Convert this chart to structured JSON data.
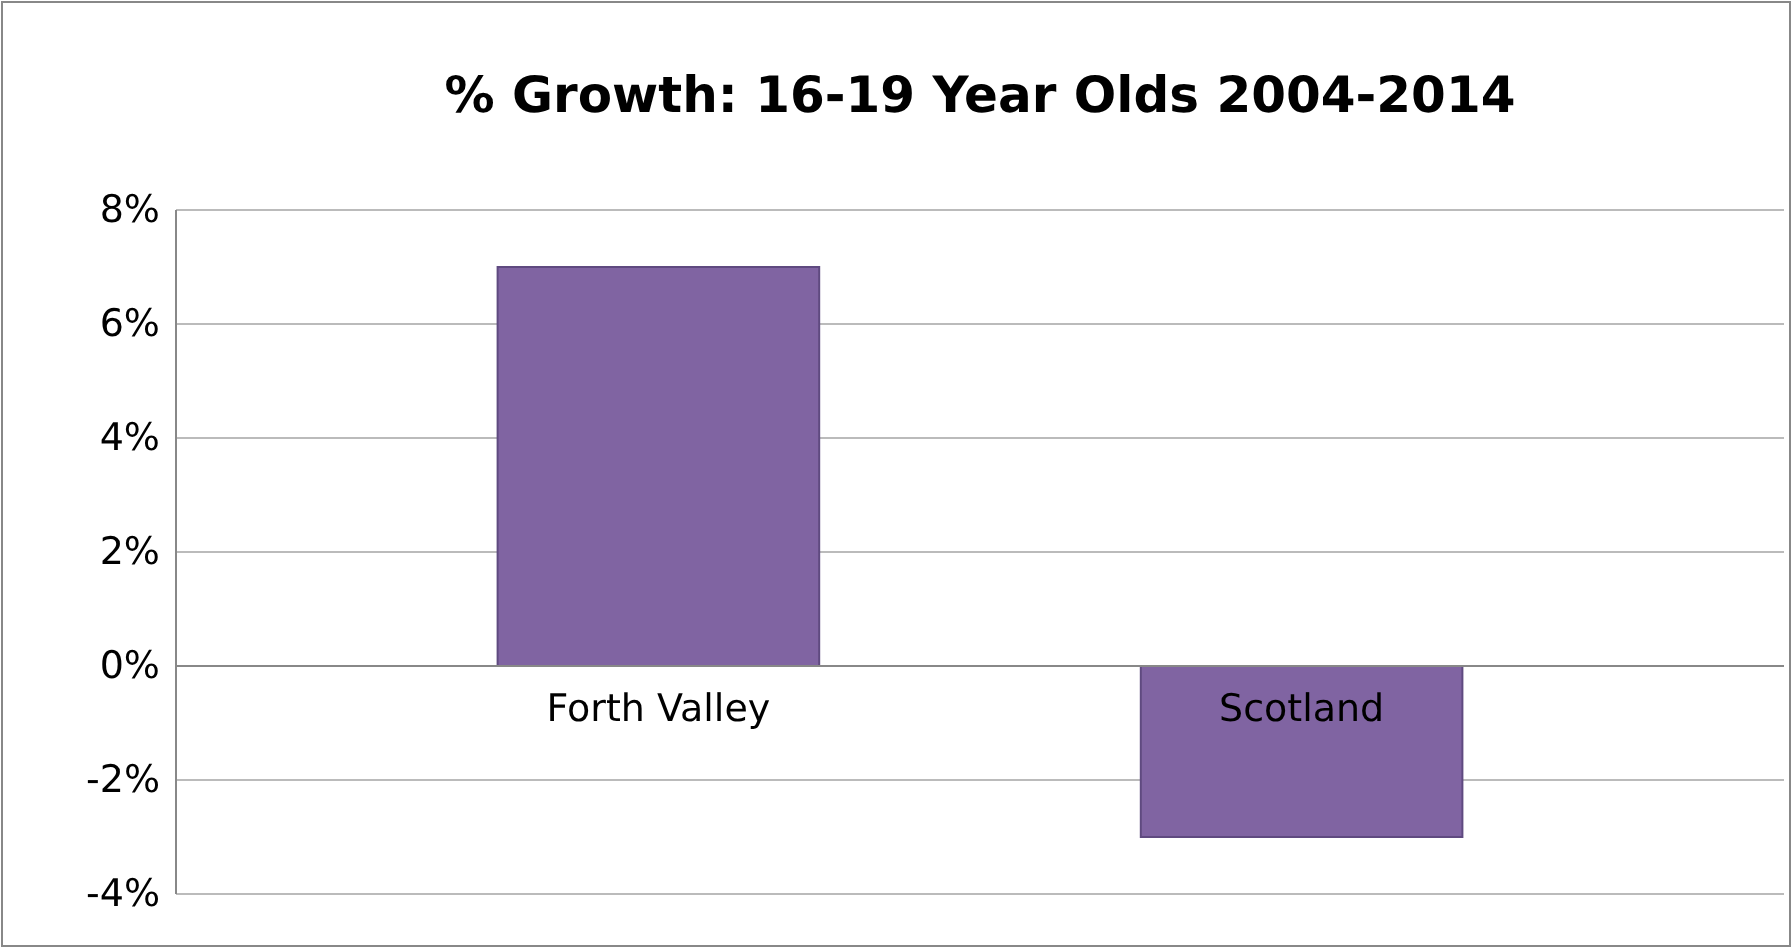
{
  "chart_data": {
    "type": "bar",
    "title": "% Growth: 16-19 Year Olds 2004-2014",
    "categories": [
      "Forth Valley",
      "Scotland"
    ],
    "values": [
      7,
      -3
    ],
    "color": "#8064a2",
    "ylim": [
      -4,
      8
    ],
    "yticks": [
      {
        "value": -4,
        "label": "-4%"
      },
      {
        "value": -2,
        "label": "-2%"
      },
      {
        "value": 0,
        "label": "0%"
      },
      {
        "value": 2,
        "label": "2%"
      },
      {
        "value": 4,
        "label": "4%"
      },
      {
        "value": 6,
        "label": "6%"
      },
      {
        "value": 8,
        "label": "8%"
      }
    ],
    "grid": "y"
  }
}
